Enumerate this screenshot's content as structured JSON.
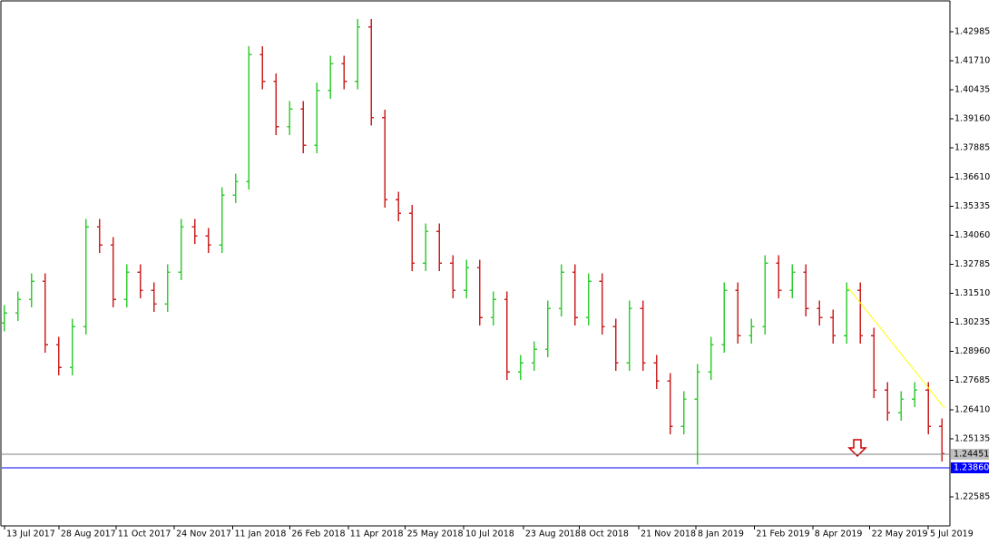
{
  "chart_data": {
    "type": "ohlc",
    "up_color": "#33cc33",
    "down_color": "#cc2222",
    "open": [
      1.302,
      1.3065,
      1.3125,
      1.3204,
      1.2926,
      1.2826,
      1.3005,
      1.3443,
      1.3363,
      1.3125,
      1.3244,
      1.3164,
      1.3105,
      1.3244,
      1.3443,
      1.3403,
      1.3363,
      1.3582,
      1.3642,
      1.4199,
      1.408,
      1.3881,
      1.396,
      1.3801,
      1.404,
      1.4159,
      1.408,
      1.4319,
      1.3921,
      1.3562,
      1.3503,
      1.3284,
      1.3423,
      1.3284,
      1.3164,
      1.3264,
      1.3045,
      1.3125,
      1.2806,
      1.2846,
      1.2906,
      1.3085,
      1.3244,
      1.3045,
      1.3204,
      1.3005,
      1.2846,
      1.3085,
      1.2846,
      1.2766,
      1.2567,
      1.2687,
      1.2806,
      1.2926,
      1.3164,
      1.2965,
      1.3005,
      1.3284,
      1.3164,
      1.3244,
      1.3085,
      1.3045,
      1.2965,
      1.3164,
      1.2965,
      1.2727,
      1.2627,
      1.2687,
      1.2727,
      1.2567
    ],
    "high": [
      1.31,
      1.316,
      1.3239,
      1.3239,
      1.2961,
      1.304,
      1.3478,
      1.3478,
      1.3398,
      1.3279,
      1.3279,
      1.3199,
      1.3279,
      1.3478,
      1.3478,
      1.3438,
      1.3617,
      1.3677,
      1.4234,
      1.4234,
      1.4115,
      1.3995,
      1.3995,
      1.4075,
      1.4194,
      1.4194,
      1.4354,
      1.4354,
      1.3956,
      1.3597,
      1.3538,
      1.3458,
      1.3458,
      1.3319,
      1.3299,
      1.3299,
      1.316,
      1.316,
      1.2881,
      1.2941,
      1.312,
      1.3279,
      1.3279,
      1.3239,
      1.3239,
      1.304,
      1.312,
      1.312,
      1.2881,
      1.2801,
      1.2722,
      1.2841,
      1.2961,
      1.3199,
      1.3199,
      1.304,
      1.3319,
      1.3319,
      1.3279,
      1.3279,
      1.312,
      1.308,
      1.3199,
      1.3199,
      1.3,
      1.2762,
      1.2722,
      1.2762,
      1.2762,
      1.2602
    ],
    "low": [
      1.2985,
      1.303,
      1.309,
      1.2891,
      1.2791,
      1.2791,
      1.297,
      1.3328,
      1.309,
      1.309,
      1.3129,
      1.307,
      1.307,
      1.3209,
      1.3368,
      1.3328,
      1.3328,
      1.3547,
      1.3607,
      1.4045,
      1.3846,
      1.3846,
      1.3766,
      1.3766,
      1.4005,
      1.4045,
      1.4045,
      1.3886,
      1.3527,
      1.3468,
      1.3249,
      1.3249,
      1.3249,
      1.3129,
      1.3129,
      1.301,
      1.301,
      1.2771,
      1.2771,
      1.2811,
      1.2871,
      1.305,
      1.301,
      1.301,
      1.297,
      1.2811,
      1.2811,
      1.2811,
      1.2731,
      1.2532,
      1.2532,
      1.24,
      1.2771,
      1.2891,
      1.293,
      1.293,
      1.297,
      1.3129,
      1.3129,
      1.305,
      1.301,
      1.293,
      1.293,
      1.293,
      1.2692,
      1.2592,
      1.2592,
      1.2652,
      1.2532,
      1.2413
    ],
    "close": [
      1.3065,
      1.3125,
      1.3204,
      1.2926,
      1.2826,
      1.3005,
      1.3443,
      1.3363,
      1.3125,
      1.3244,
      1.3164,
      1.3105,
      1.3244,
      1.3443,
      1.3403,
      1.3363,
      1.3582,
      1.3642,
      1.4199,
      1.408,
      1.3881,
      1.396,
      1.3801,
      1.404,
      1.4159,
      1.408,
      1.4319,
      1.3921,
      1.3562,
      1.3503,
      1.3284,
      1.3423,
      1.3284,
      1.3164,
      1.3264,
      1.3045,
      1.3125,
      1.2806,
      1.2846,
      1.2906,
      1.3085,
      1.3244,
      1.3045,
      1.3204,
      1.3005,
      1.2846,
      1.3085,
      1.2846,
      1.2766,
      1.2567,
      1.2687,
      1.2806,
      1.2926,
      1.3164,
      1.2965,
      1.3005,
      1.3284,
      1.3164,
      1.3244,
      1.3085,
      1.3045,
      1.2965,
      1.3164,
      1.2965,
      1.2727,
      1.2627,
      1.2687,
      1.2727,
      1.2567,
      1.2448
    ],
    "xlim": [
      -0.2,
      69.6
    ],
    "xticks": [
      {
        "value": 0,
        "label": "13 Jul 2017"
      },
      {
        "value": 4,
        "label": "28 Aug 2017"
      },
      {
        "value": 8.2,
        "label": "11 Oct 2017"
      },
      {
        "value": 12.5,
        "label": "24 Nov 2017"
      },
      {
        "value": 16.8,
        "label": "11 Jan 2018"
      },
      {
        "value": 21,
        "label": "26 Feb 2018"
      },
      {
        "value": 25.3,
        "label": "11 Apr 2018"
      },
      {
        "value": 29.5,
        "label": "25 May 2018"
      },
      {
        "value": 33.8,
        "label": "10 Jul 2018"
      },
      {
        "value": 38.2,
        "label": "23 Aug 2018"
      },
      {
        "value": 42.3,
        "label": "8 Oct 2018"
      },
      {
        "value": 46.7,
        "label": "21 Nov 2018"
      },
      {
        "value": 50.9,
        "label": "8 Jan 2019"
      },
      {
        "value": 55.2,
        "label": "21 Feb 2019"
      },
      {
        "value": 59.5,
        "label": "8 Apr 2019"
      },
      {
        "value": 63.7,
        "label": "22 May 2019"
      },
      {
        "value": 68,
        "label": "5 Jul 2019"
      }
    ],
    "ylim": [
      1.21312,
      1.44297
    ],
    "yticks": [
      1.42985,
      {
        "value": 1.4171,
        "label": "1.41710"
      },
      1.40435,
      {
        "value": 1.3916,
        "label": "1.39160"
      },
      1.37885,
      {
        "value": 1.3661,
        "label": "1.36610"
      },
      1.35335,
      {
        "value": 1.3406,
        "label": "1.34060"
      },
      1.32785,
      {
        "value": 1.3151,
        "label": "1.31510"
      },
      1.30235,
      {
        "value": 1.2896,
        "label": "1.28960"
      },
      1.27685,
      {
        "value": 1.2641,
        "label": "1.26410"
      },
      1.25135,
      1.22585
    ],
    "price_lines": [
      {
        "value": 1.24451,
        "color": "#808080",
        "box": "#c0c0c0"
      },
      {
        "value": 1.2386,
        "label": "1.23860",
        "color": "#0000ff",
        "box": "#0000ff"
      }
    ],
    "trendline": {
      "x": [
        62.1,
        69.2
      ],
      "y": [
        1.3177,
        1.2648
      ],
      "color": "#ffff00"
    }
  }
}
